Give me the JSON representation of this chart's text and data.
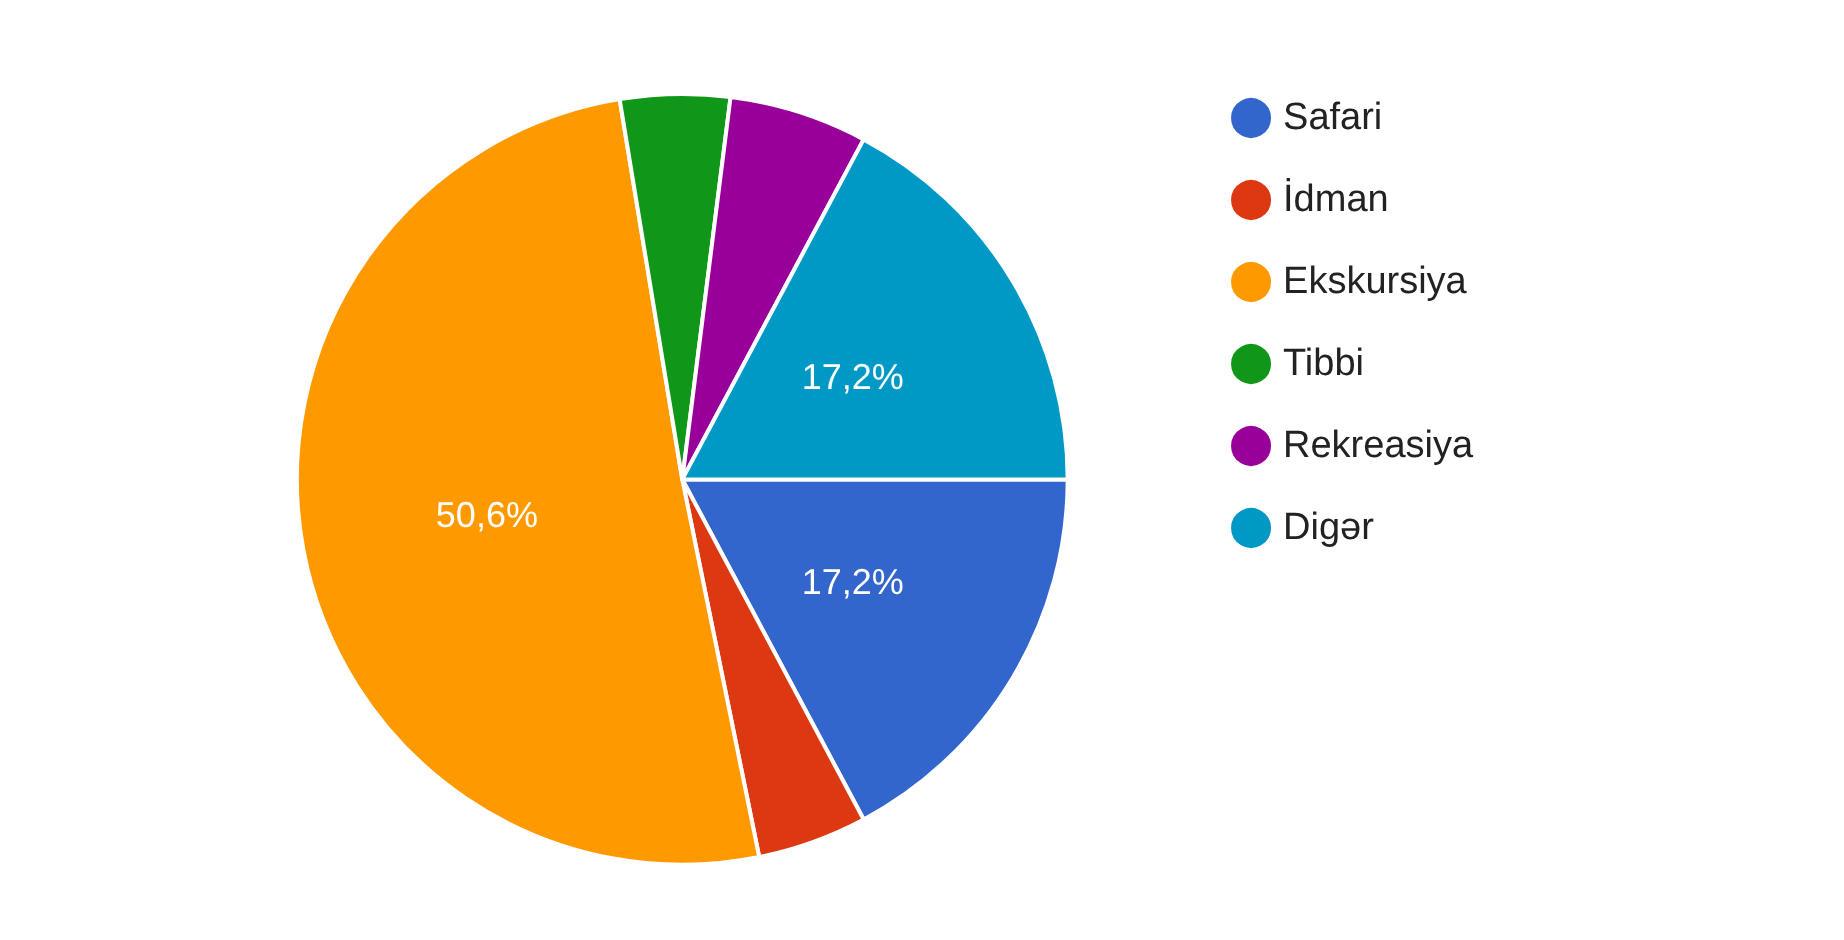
{
  "chart_data": {
    "type": "pie",
    "categories": [
      "Safari",
      "İdman",
      "Ekskursiya",
      "Tibbi",
      "Rekreasiya",
      "Digər"
    ],
    "values": [
      17.2,
      4.6,
      50.6,
      4.6,
      5.8,
      17.2
    ],
    "colors": [
      "#3366cc",
      "#dc3912",
      "#ff9900",
      "#109618",
      "#990099",
      "#0099c6"
    ],
    "value_labels": [
      "17,2%",
      null,
      "50,6%",
      null,
      null,
      "17,2%"
    ],
    "legend": "right"
  }
}
